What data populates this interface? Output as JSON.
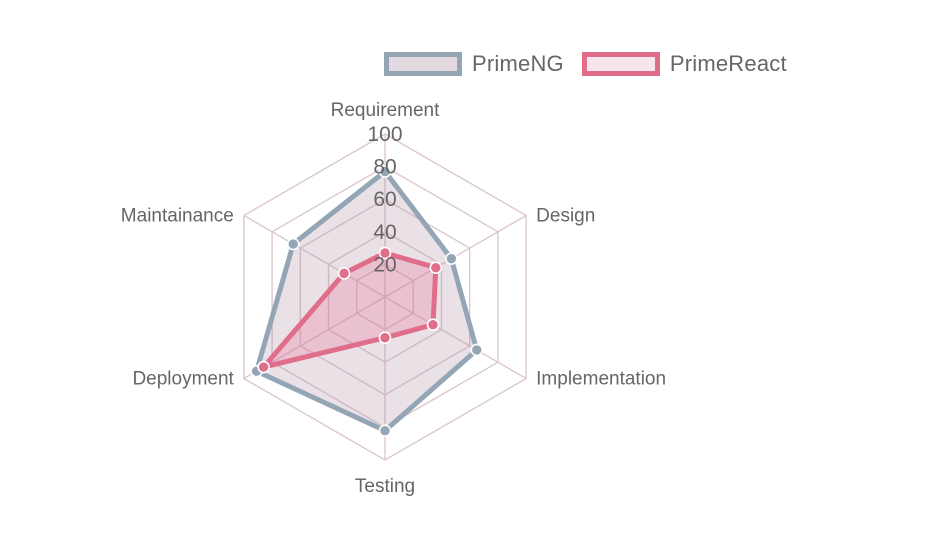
{
  "chart_data": {
    "type": "radar",
    "labels": [
      "Requirement",
      "Design",
      "Implementation",
      "Testing",
      "Deployment",
      "Maintainance"
    ],
    "ticks": [
      "20",
      "40",
      "60",
      "80",
      "100"
    ],
    "range": [
      0,
      100
    ],
    "series": [
      {
        "name": "PrimeNG",
        "values": [
          77,
          47,
          65,
          82,
          91,
          65
        ],
        "border_color": "#94a6b6",
        "fill_color": "rgba(170,135,160,0.25)",
        "swatch_fill": "#e4d8e1"
      },
      {
        "name": "PrimeReact",
        "values": [
          27,
          36,
          34,
          25,
          86,
          29
        ],
        "border_color": "#e06e8b",
        "fill_color": "rgba(232,110,150,0.28)",
        "swatch_fill": "#f6e5ed"
      }
    ],
    "grid_color": "#dcc8cf",
    "legend_position": "top"
  }
}
